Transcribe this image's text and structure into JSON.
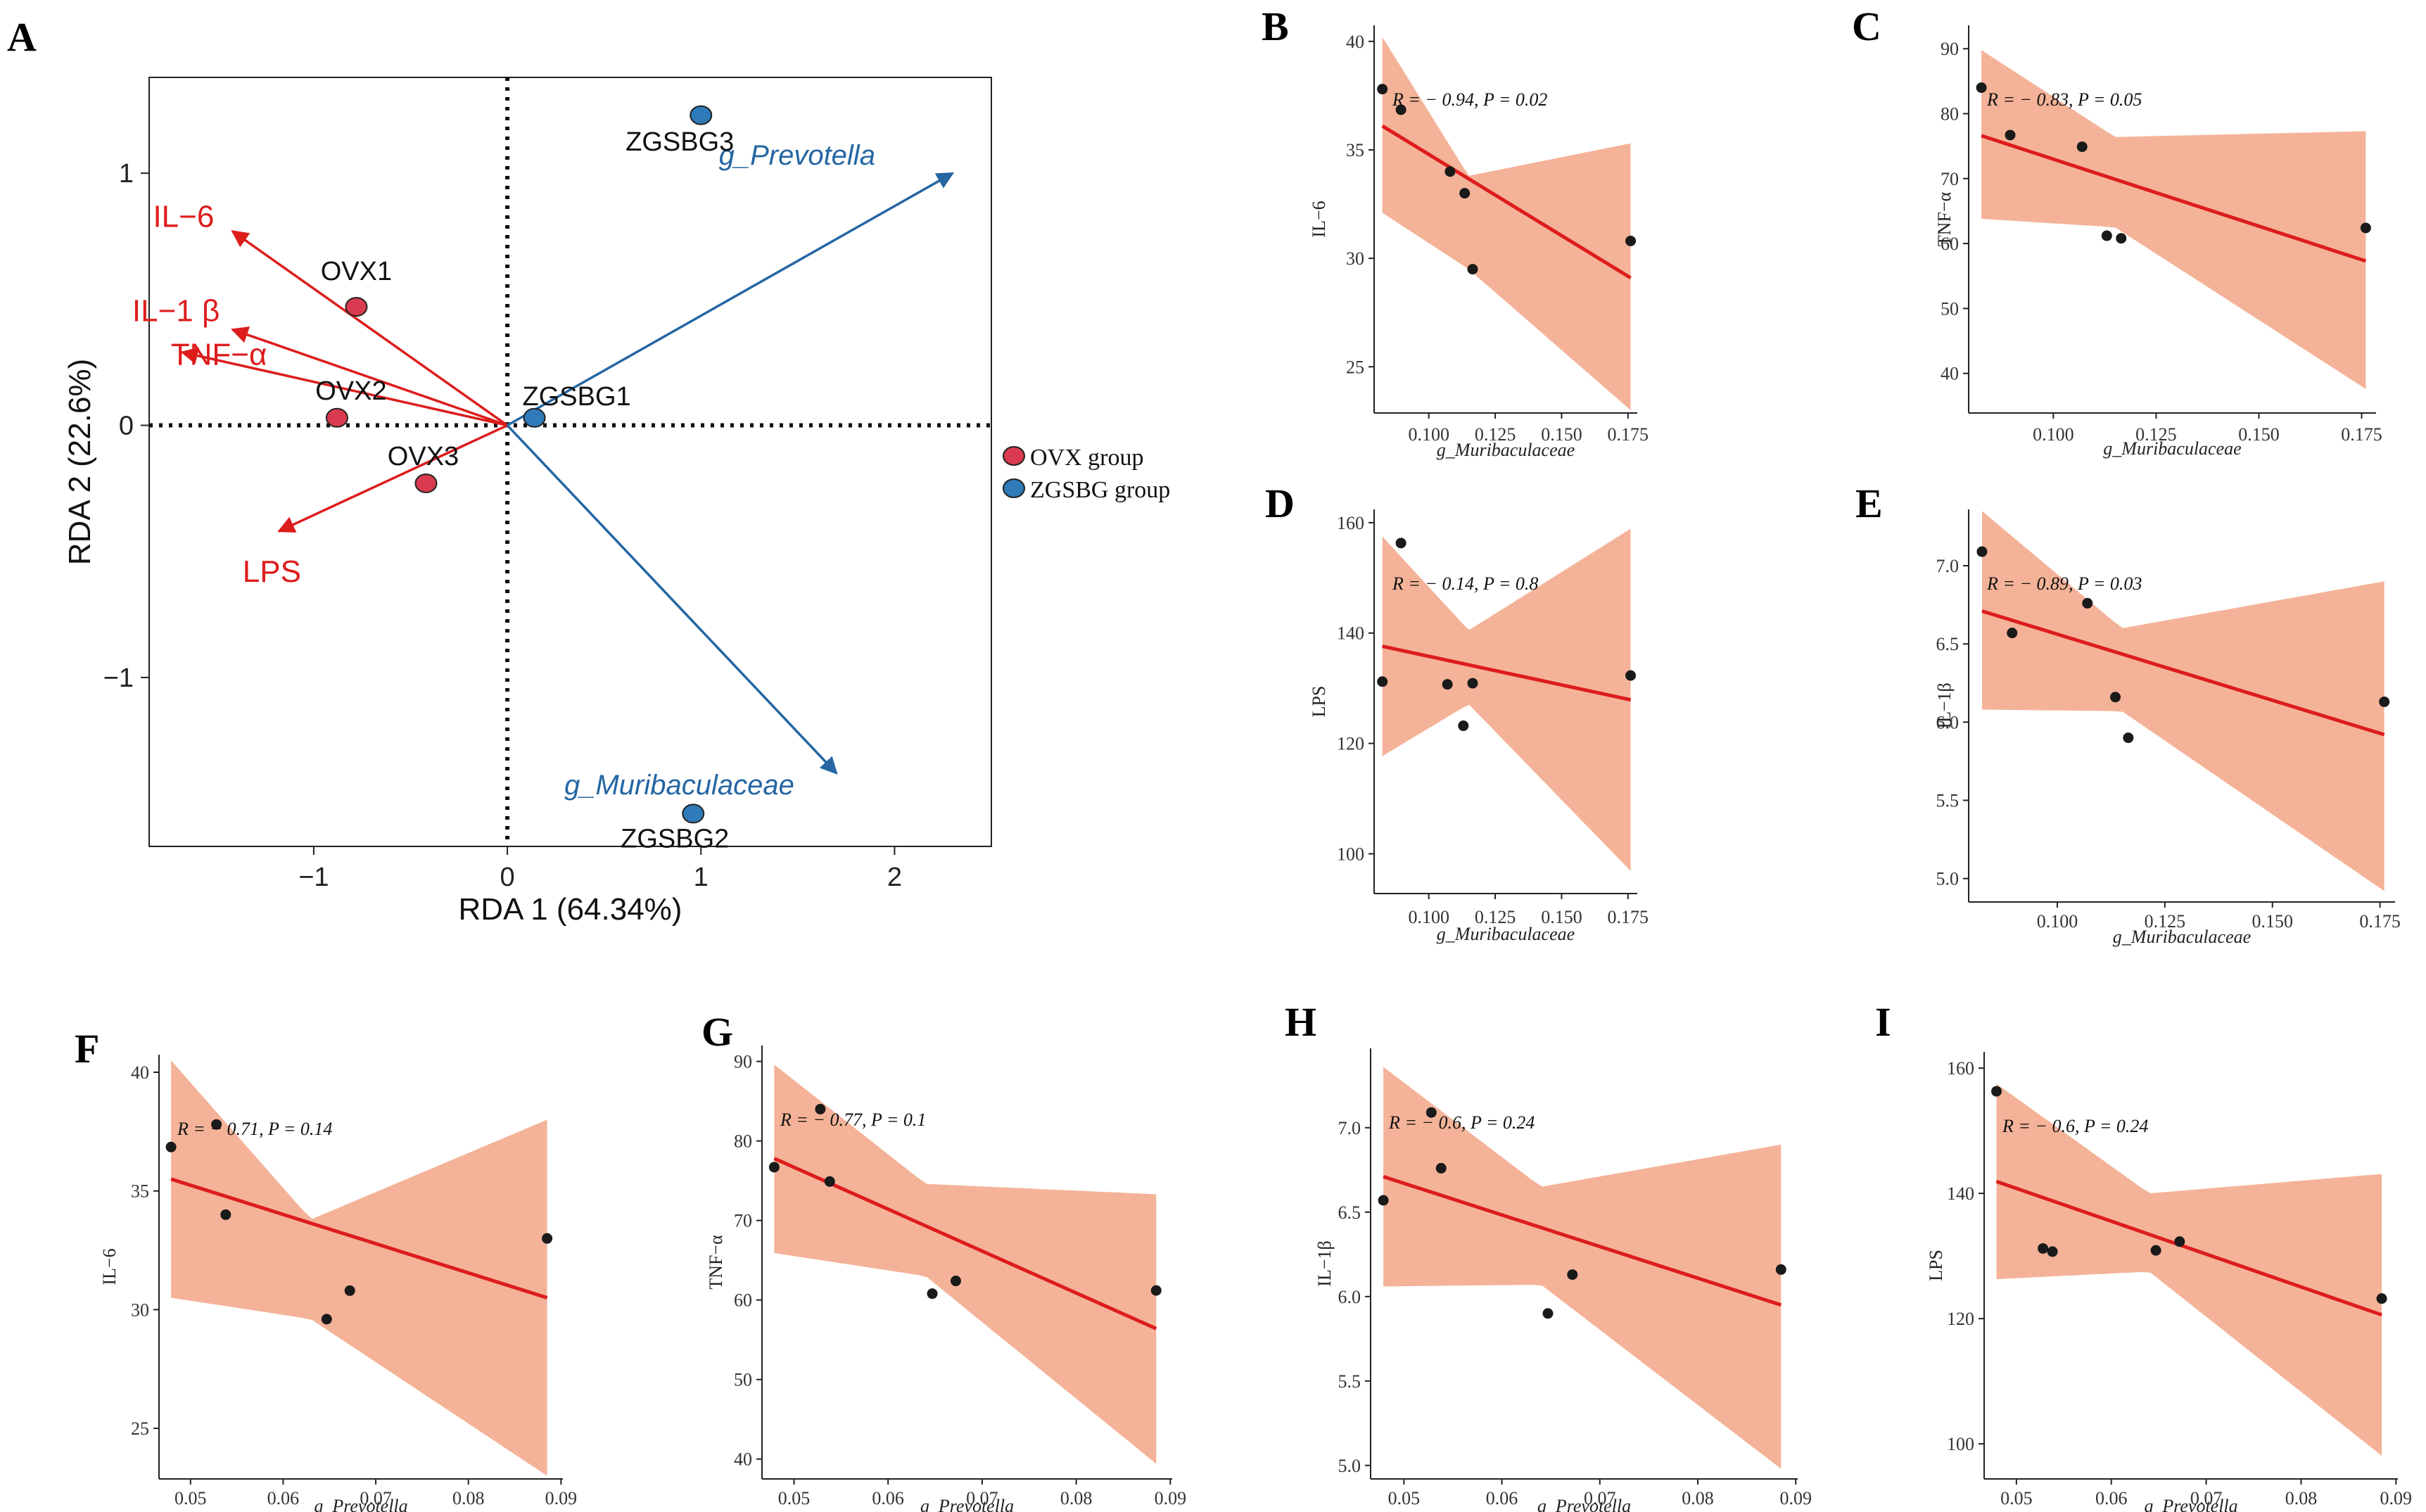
{
  "figure": {
    "panel_letters": [
      "A",
      "B",
      "C",
      "D",
      "E",
      "F",
      "G",
      "H",
      "I"
    ]
  },
  "chart_data": [
    {
      "panel": "A",
      "type": "scatter",
      "title": "",
      "xlabel": "RDA 1 (64.34%)",
      "ylabel": "RDA 2 (22.6%)",
      "xlim": [
        -1.85,
        2.5
      ],
      "ylim": [
        -1.67,
        1.38
      ],
      "xticks": [
        -1,
        0,
        1,
        2
      ],
      "xtick_labels": [
        "−1",
        "0",
        "1",
        "2"
      ],
      "yticks": [
        -1,
        0,
        1
      ],
      "ytick_labels": [
        "−1",
        "0",
        "1"
      ],
      "points": [
        {
          "label": "OVX1",
          "x": -0.78,
          "y": 0.47,
          "group": "OVX group"
        },
        {
          "label": "OVX2",
          "x": -0.88,
          "y": 0.03,
          "group": "OVX group"
        },
        {
          "label": "OVX3",
          "x": -0.42,
          "y": -0.23,
          "group": "OVX group"
        },
        {
          "label": "ZGSBG1",
          "x": 0.14,
          "y": 0.03,
          "group": "ZGSBG group"
        },
        {
          "label": "ZGSBG2",
          "x": 0.96,
          "y": -1.54,
          "group": "ZGSBG group"
        },
        {
          "label": "ZGSBG3",
          "x": 1.0,
          "y": 1.23,
          "group": "ZGSBG group"
        }
      ],
      "arrows": [
        {
          "label": "IL−6",
          "x": -1.42,
          "y": 0.77,
          "color": "#dd1c1c",
          "italic": false
        },
        {
          "label": "IL−1 β",
          "x": -1.42,
          "y": 0.38,
          "color": "#dd1c1c",
          "italic": false
        },
        {
          "label": "TNF−α",
          "x": -1.68,
          "y": 0.29,
          "color": "#dd1c1c",
          "italic": false
        },
        {
          "label": "LPS",
          "x": -1.18,
          "y": -0.42,
          "color": "#dd1c1c",
          "italic": false
        },
        {
          "label": "g_Prevotella",
          "x": 2.3,
          "y": 1.0,
          "color": "#2566a3",
          "italic": true
        },
        {
          "label": "g_Muribaculaceae",
          "x": 1.7,
          "y": -1.38,
          "color": "#2566a3",
          "italic": true
        }
      ],
      "legend": [
        {
          "label": "OVX group",
          "color": "#d93a4f"
        },
        {
          "label": "ZGSBG group",
          "color": "#2f7ab8"
        }
      ]
    },
    {
      "panel": "B",
      "type": "scatter",
      "xlabel": "g_Muribaculaceae",
      "ylabel": "IL−6",
      "annotation": "R = − 0.94, P = 0.02",
      "xlim": [
        0.0794,
        0.1785
      ],
      "ylim": [
        22.87,
        40.74
      ],
      "xticks": [
        0.1,
        0.125,
        0.15,
        0.175
      ],
      "xtick_labels": [
        "0.100",
        "0.125",
        "0.150",
        "0.175"
      ],
      "yticks": [
        25,
        30,
        35,
        40
      ],
      "ytick_labels": [
        "25",
        "30",
        "35",
        "40"
      ],
      "x": [
        0.0825,
        0.0895,
        0.108,
        0.1135,
        0.1165,
        0.176
      ],
      "y": [
        37.8,
        36.85,
        34.0,
        33.0,
        29.5,
        30.8
      ],
      "fit": {
        "x": [
          0.0825,
          0.176
        ],
        "y": [
          36.1,
          29.1
        ]
      },
      "band": {
        "x": [
          0.0825,
          0.115,
          0.176
        ],
        "lower": [
          32.1,
          29.5,
          23.0
        ],
        "upper": [
          40.2,
          33.8,
          35.3
        ]
      }
    },
    {
      "panel": "C",
      "type": "scatter",
      "xlabel": "g_Muribaculaceae",
      "ylabel": "TNF−α",
      "annotation": "R = − 0.83, P = 0.05",
      "xlim": [
        0.0794,
        0.1785
      ],
      "ylim": [
        33.9,
        93.6
      ],
      "xticks": [
        0.1,
        0.125,
        0.15,
        0.175
      ],
      "xtick_labels": [
        "0.100",
        "0.125",
        "0.150",
        "0.175"
      ],
      "yticks": [
        40,
        50,
        60,
        70,
        80,
        90
      ],
      "ytick_labels": [
        "40",
        "50",
        "60",
        "70",
        "80",
        "90"
      ],
      "x": [
        0.0825,
        0.0895,
        0.107,
        0.113,
        0.1165,
        0.176
      ],
      "y": [
        84.0,
        76.7,
        74.9,
        61.2,
        60.8,
        62.4
      ],
      "fit": {
        "x": [
          0.0825,
          0.176
        ],
        "y": [
          76.6,
          57.3
        ]
      },
      "band": {
        "x": [
          0.0825,
          0.115,
          0.176
        ],
        "lower": [
          63.8,
          62.5,
          37.6
        ],
        "upper": [
          89.8,
          76.4,
          77.3
        ]
      }
    },
    {
      "panel": "D",
      "type": "scatter",
      "xlabel": "g_Muribaculaceae",
      "ylabel": "LPS",
      "annotation": "R = − 0.14, P = 0.8",
      "xlim": [
        0.0794,
        0.1785
      ],
      "ylim": [
        92.8,
        162.4
      ],
      "xticks": [
        0.1,
        0.125,
        0.15,
        0.175
      ],
      "xtick_labels": [
        "0.100",
        "0.125",
        "0.150",
        "0.175"
      ],
      "yticks": [
        100,
        120,
        140,
        160
      ],
      "ytick_labels": [
        "100",
        "120",
        "140",
        "160"
      ],
      "x": [
        0.0825,
        0.0895,
        0.107,
        0.113,
        0.1165,
        0.176
      ],
      "y": [
        131.2,
        156.3,
        130.7,
        123.2,
        130.9,
        132.3
      ],
      "fit": {
        "x": [
          0.0825,
          0.176
        ],
        "y": [
          137.6,
          127.9
        ]
      },
      "band": {
        "x": [
          0.0825,
          0.115,
          0.176
        ],
        "lower": [
          117.7,
          127.1,
          96.9
        ],
        "upper": [
          157.5,
          140.5,
          158.9
        ]
      }
    },
    {
      "panel": "E",
      "type": "scatter",
      "xlabel": "g_Muribaculaceae",
      "ylabel": "IL−1β",
      "annotation": "R = − 0.89, P = 0.03",
      "xlim": [
        0.0794,
        0.1785
      ],
      "ylim": [
        4.85,
        7.36
      ],
      "xticks": [
        0.1,
        0.125,
        0.15,
        0.175
      ],
      "xtick_labels": [
        "0.100",
        "0.125",
        "0.150",
        "0.175"
      ],
      "yticks": [
        5.0,
        5.5,
        6.0,
        6.5,
        7.0
      ],
      "ytick_labels": [
        "5.0",
        "5.5",
        "6.0",
        "6.5",
        "7.0"
      ],
      "x": [
        0.0825,
        0.0895,
        0.107,
        0.1135,
        0.1165,
        0.176
      ],
      "y": [
        7.09,
        6.57,
        6.76,
        6.16,
        5.9,
        6.13
      ],
      "fit": {
        "x": [
          0.0825,
          0.176
        ],
        "y": [
          6.71,
          5.92
        ]
      },
      "band": {
        "x": [
          0.0825,
          0.115,
          0.176
        ],
        "lower": [
          6.08,
          6.07,
          4.92
        ],
        "upper": [
          7.35,
          6.6,
          6.9
        ]
      }
    },
    {
      "panel": "F",
      "type": "scatter",
      "xlabel": "g_Prevotella",
      "ylabel": "IL−6",
      "annotation": "R = − 0.71, P = 0.14",
      "xlim": [
        0.0466,
        0.0902
      ],
      "ylim": [
        22.87,
        40.74
      ],
      "xticks": [
        0.05,
        0.06,
        0.07,
        0.08,
        0.09
      ],
      "xtick_labels": [
        "0.05",
        "0.06",
        "0.07",
        "0.08",
        "0.09"
      ],
      "yticks": [
        25,
        30,
        35,
        40
      ],
      "ytick_labels": [
        "25",
        "30",
        "35",
        "40"
      ],
      "x": [
        0.0479,
        0.0528,
        0.0538,
        0.0647,
        0.0672,
        0.0885
      ],
      "y": [
        36.85,
        37.8,
        34.0,
        29.6,
        30.8,
        33.0
      ],
      "fit": {
        "x": [
          0.0479,
          0.0885
        ],
        "y": [
          35.5,
          30.5
        ]
      },
      "band": {
        "x": [
          0.0479,
          0.063,
          0.0885
        ],
        "lower": [
          30.5,
          29.6,
          23.0
        ],
        "upper": [
          40.5,
          33.8,
          38.0
        ]
      }
    },
    {
      "panel": "G",
      "type": "scatter",
      "xlabel": "g_Prevotella",
      "ylabel": "TNF−α",
      "annotation": "R = − 0.77, P = 0.1",
      "xlim": [
        0.0466,
        0.0902
      ],
      "ylim": [
        37.5,
        92.0
      ],
      "xticks": [
        0.05,
        0.06,
        0.07,
        0.08,
        0.09
      ],
      "xtick_labels": [
        "0.05",
        "0.06",
        "0.07",
        "0.08",
        "0.09"
      ],
      "yticks": [
        40,
        50,
        60,
        70,
        80,
        90
      ],
      "ytick_labels": [
        "40",
        "50",
        "60",
        "70",
        "80",
        "90"
      ],
      "x": [
        0.0479,
        0.0528,
        0.0538,
        0.0647,
        0.0672,
        0.0885
      ],
      "y": [
        76.7,
        84.0,
        74.9,
        60.8,
        62.4,
        61.2
      ],
      "fit": {
        "x": [
          0.0479,
          0.0885
        ],
        "y": [
          77.8,
          56.4
        ]
      },
      "band": {
        "x": [
          0.0479,
          0.064,
          0.0885
        ],
        "lower": [
          65.9,
          63.0,
          39.4
        ],
        "upper": [
          89.6,
          74.6,
          73.3
        ]
      }
    },
    {
      "panel": "H",
      "type": "scatter",
      "xlabel": "g_Prevotella",
      "ylabel": "IL−1β",
      "annotation": "R = − 0.6, P = 0.24",
      "xlim": [
        0.0466,
        0.0902
      ],
      "ylim": [
        4.92,
        7.47
      ],
      "xticks": [
        0.05,
        0.06,
        0.07,
        0.08,
        0.09
      ],
      "xtick_labels": [
        "0.05",
        "0.06",
        "0.07",
        "0.08",
        "0.09"
      ],
      "yticks": [
        5.0,
        5.5,
        6.0,
        6.5,
        7.0
      ],
      "ytick_labels": [
        "5.0",
        "5.5",
        "6.0",
        "6.5",
        "7.0"
      ],
      "x": [
        0.0479,
        0.0528,
        0.0538,
        0.0647,
        0.0672,
        0.0885
      ],
      "y": [
        6.57,
        7.09,
        6.76,
        5.9,
        6.13,
        6.16
      ],
      "fit": {
        "x": [
          0.0479,
          0.0885
        ],
        "y": [
          6.71,
          5.95
        ]
      },
      "band": {
        "x": [
          0.0479,
          0.064,
          0.0885
        ],
        "lower": [
          6.06,
          6.07,
          4.98
        ],
        "upper": [
          7.36,
          6.65,
          6.9
        ]
      }
    },
    {
      "panel": "I",
      "type": "scatter",
      "xlabel": "g_Prevotella",
      "ylabel": "LPS",
      "annotation": "R = − 0.6, P = 0.24",
      "xlim": [
        0.0466,
        0.0902
      ],
      "ylim": [
        94.4,
        162.6
      ],
      "xticks": [
        0.05,
        0.06,
        0.07,
        0.08,
        0.09
      ],
      "xtick_labels": [
        "0.05",
        "0.06",
        "0.07",
        "0.08",
        "0.09"
      ],
      "yticks": [
        100,
        120,
        140,
        160
      ],
      "ytick_labels": [
        "100",
        "120",
        "140",
        "160"
      ],
      "x": [
        0.0479,
        0.0528,
        0.0538,
        0.0647,
        0.0672,
        0.0885
      ],
      "y": [
        156.3,
        131.2,
        130.7,
        130.9,
        132.3,
        123.2
      ],
      "fit": {
        "x": [
          0.0479,
          0.0885
        ],
        "y": [
          141.9,
          120.6
        ]
      },
      "band": {
        "x": [
          0.0479,
          0.064,
          0.0885
        ],
        "lower": [
          126.3,
          127.5,
          98.1
        ],
        "upper": [
          157.5,
          140.0,
          143.1
        ]
      }
    }
  ]
}
